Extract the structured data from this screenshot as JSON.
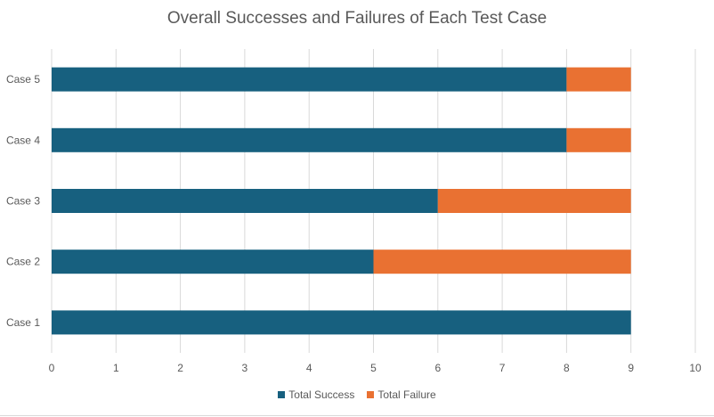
{
  "chart_data": {
    "type": "bar",
    "orientation": "horizontal",
    "stacked": true,
    "title": "Overall Successes and Failures of Each Test Case",
    "categories": [
      "Case 1",
      "Case 2",
      "Case 3",
      "Case 4",
      "Case 5"
    ],
    "series": [
      {
        "name": "Total Success",
        "color": "#17607f",
        "values": [
          9,
          5,
          6,
          8,
          8
        ]
      },
      {
        "name": "Total Failure",
        "color": "#e97132",
        "values": [
          0,
          4,
          3,
          1,
          1
        ]
      }
    ],
    "xlim": [
      0,
      10
    ],
    "xticks": [
      "0",
      "1",
      "2",
      "3",
      "4",
      "5",
      "6",
      "7",
      "8",
      "9",
      "10"
    ],
    "grid": "vertical",
    "legend_position": "bottom"
  }
}
